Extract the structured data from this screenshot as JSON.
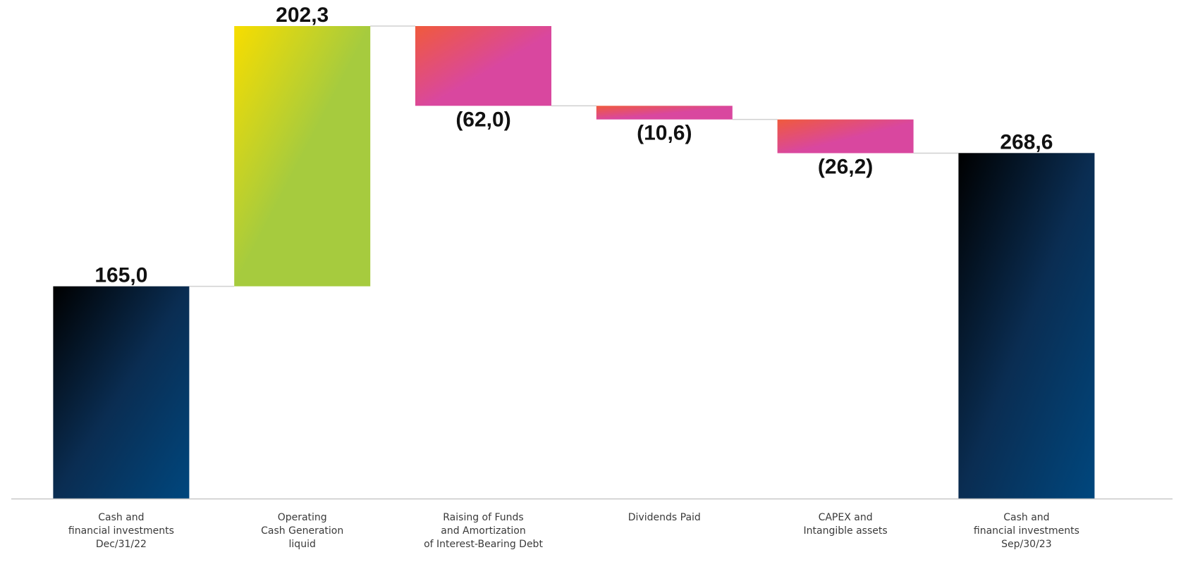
{
  "chart_data": {
    "type": "bar",
    "subtype": "waterfall",
    "categories": [
      [
        "Cash and",
        "financial investments",
        "Dec/31/22"
      ],
      [
        "Operating",
        "Cash Generation",
        "liquid"
      ],
      [
        "Raising of Funds",
        "and Amortization",
        "of Interest-Bearing Debt"
      ],
      [
        "Dividends Paid"
      ],
      [
        "CAPEX and",
        "Intangible assets"
      ],
      [
        "Cash and",
        "financial investments",
        "Sep/30/23"
      ]
    ],
    "steps": [
      {
        "kind": "total",
        "value": 165.0,
        "label": "165,0",
        "style": "total"
      },
      {
        "kind": "delta",
        "value": 202.3,
        "label": "202,3",
        "style": "increase"
      },
      {
        "kind": "delta",
        "value": -62.0,
        "label": "(62,0)",
        "style": "decrease"
      },
      {
        "kind": "delta",
        "value": -10.6,
        "label": "(10,6)",
        "style": "decrease"
      },
      {
        "kind": "delta",
        "value": -26.2,
        "label": "(26,2)",
        "style": "decrease"
      },
      {
        "kind": "total",
        "value": 268.6,
        "label": "268,6",
        "style": "total"
      }
    ],
    "title": "",
    "xlabel": "",
    "ylabel": "",
    "grid": false,
    "legend": "none",
    "connectors": true
  },
  "colors": {
    "total_start": "#000000",
    "total_mid": "#0a2d52",
    "total_end": "#00477e",
    "increase_start": "#f7dd00",
    "increase_end": "#a6cb3e",
    "decrease_start": "#f05a3c",
    "decrease_end": "#d9479f",
    "axis": "#c8c8c8",
    "connector": "#d0d0d0",
    "value_text": "#111111",
    "category_text": "#3a3a3a"
  }
}
